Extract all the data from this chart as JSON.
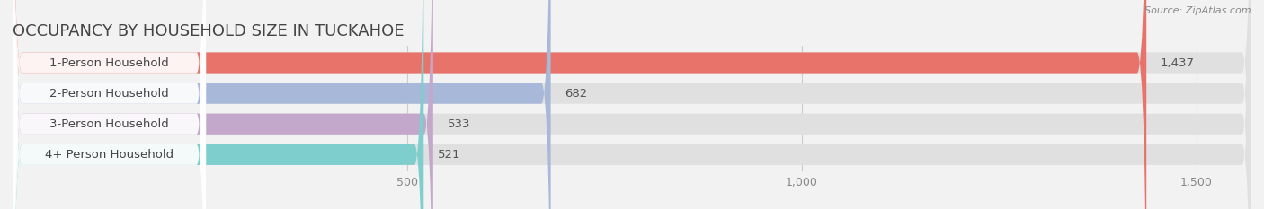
{
  "title": "OCCUPANCY BY HOUSEHOLD SIZE IN TUCKAHOE",
  "source": "Source: ZipAtlas.com",
  "categories": [
    "1-Person Household",
    "2-Person Household",
    "3-Person Household",
    "4+ Person Household"
  ],
  "values": [
    1437,
    682,
    533,
    521
  ],
  "bar_colors": [
    "#e8736a",
    "#a8b8d8",
    "#c4a8cc",
    "#7ecece"
  ],
  "value_labels": [
    "1,437",
    "682",
    "533",
    "521"
  ],
  "xlim": [
    0,
    1570
  ],
  "xticks": [
    500,
    1000,
    1500
  ],
  "xtick_labels": [
    "500",
    "1,000",
    "1,500"
  ],
  "background_color": "#f2f2f2",
  "bar_background_color": "#e0e0e0",
  "label_bg_color": "#ffffff",
  "title_fontsize": 13,
  "source_fontsize": 8,
  "axis_fontsize": 9,
  "bar_label_fontsize": 9.5,
  "value_label_fontsize": 9.5,
  "bar_height": 0.68,
  "fig_width": 14.06,
  "fig_height": 2.33,
  "grid_color": "#cccccc",
  "text_color": "#444444",
  "value_color": "#555555"
}
